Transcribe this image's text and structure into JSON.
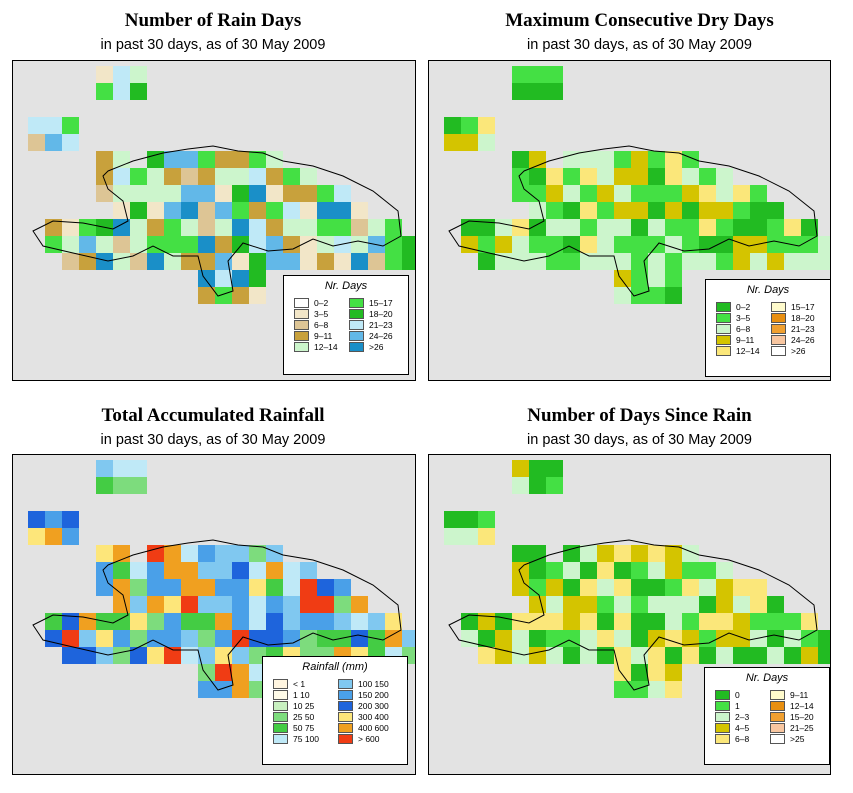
{
  "panels": [
    {
      "title": "Number of Rain Days",
      "subtitle": "in past 30 days, as of  30 May 2009",
      "legend": {
        "title": "Nr. Days",
        "items": [
          {
            "label": "0–2",
            "color": "#ffffff"
          },
          {
            "label": "3–5",
            "color": "#f2e6c8"
          },
          {
            "label": "6–8",
            "color": "#ddc595"
          },
          {
            "label": "9–11",
            "color": "#c8a13c"
          },
          {
            "label": "12–14",
            "color": "#ccf5cc"
          },
          {
            "label": "15–17",
            "color": "#44e044"
          },
          {
            "label": "18–20",
            "color": "#22bb22"
          },
          {
            "label": "21–23",
            "color": "#bfe9f7"
          },
          {
            "label": "24–26",
            "color": "#62b8e8"
          },
          {
            "label": ">26",
            "color": "#1a8fc8"
          }
        ]
      }
    },
    {
      "title": "Maximum Consecutive Dry Days",
      "subtitle": "in past 30 days, as of  30 May 2009",
      "legend": {
        "title": "Nr. Days",
        "items": [
          {
            "label": "0–2",
            "color": "#22bb22"
          },
          {
            "label": "3–5",
            "color": "#44e044"
          },
          {
            "label": "6–8",
            "color": "#ccf5cc"
          },
          {
            "label": "9–11",
            "color": "#d4c400"
          },
          {
            "label": "12–14",
            "color": "#fbe77a"
          },
          {
            "label": "15–17",
            "color": "#fffbcc"
          },
          {
            "label": "18–20",
            "color": "#e88f10"
          },
          {
            "label": "21–23",
            "color": "#f0a030"
          },
          {
            "label": "24–26",
            "color": "#f8c6a0"
          },
          {
            "label": ">26",
            "color": "#ffffff"
          }
        ]
      }
    },
    {
      "title": "Total Accumulated Rainfall",
      "subtitle": "in past 30 days, as of  30 May 2009",
      "legend": {
        "title": "Rainfall (mm)",
        "items": [
          {
            "label": "< 1",
            "color": "#fff5e0"
          },
          {
            "label": "1    10",
            "color": "#fffbe8"
          },
          {
            "label": "10    25",
            "color": "#c8f0c0"
          },
          {
            "label": "25    50",
            "color": "#7ddc7d"
          },
          {
            "label": "50    75",
            "color": "#44cc44"
          },
          {
            "label": "75  100",
            "color": "#bfe9f7"
          },
          {
            "label": "100  150",
            "color": "#80c8f0"
          },
          {
            "label": "150  200",
            "color": "#4aa0e8"
          },
          {
            "label": "200  300",
            "color": "#1e64dc"
          },
          {
            "label": "300  400",
            "color": "#fde67a"
          },
          {
            "label": "400  600",
            "color": "#f0a020"
          },
          {
            "label": "> 600",
            "color": "#f03c14"
          }
        ]
      }
    },
    {
      "title": "Number of Days Since Rain",
      "subtitle": "in past 30 days, as of  30 May 2009",
      "legend": {
        "title": "Nr. Days",
        "items": [
          {
            "label": "0",
            "color": "#22bb22"
          },
          {
            "label": "1",
            "color": "#44e044"
          },
          {
            "label": "2–3",
            "color": "#ccf5cc"
          },
          {
            "label": "4–5",
            "color": "#d4c400"
          },
          {
            "label": "6–8",
            "color": "#fbe77a"
          },
          {
            "label": "9–11",
            "color": "#fffbcc"
          },
          {
            "label": "12–14",
            "color": "#e88f10"
          },
          {
            "label": "15–20",
            "color": "#f0a030"
          },
          {
            "label": "21–25",
            "color": "#f8c6a0"
          },
          {
            "label": ">25",
            "color": "#ffffff"
          }
        ]
      }
    }
  ],
  "colors": {
    "map_background": "#e3e3e3",
    "coastline": "#000000"
  }
}
